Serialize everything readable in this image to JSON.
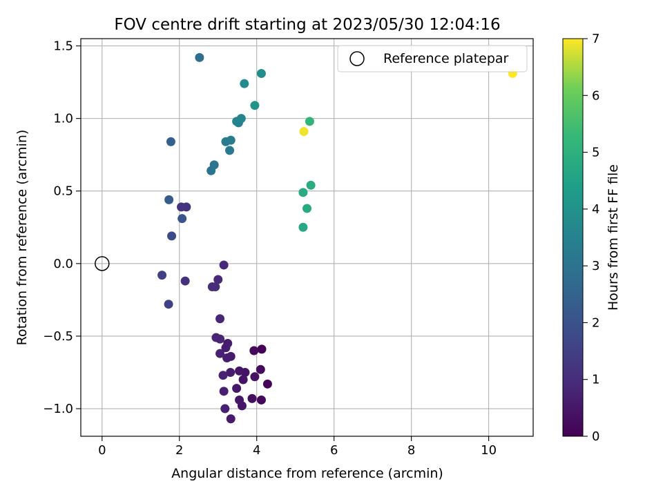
{
  "chart_data": {
    "type": "scatter",
    "title": "FOV centre drift starting at 2023/05/30 12:04:16",
    "xlabel": "Angular distance from reference (arcmin)",
    "ylabel": "Rotation from reference (arcmin)",
    "xlim": [
      -0.55,
      11.15
    ],
    "ylim": [
      -1.19,
      1.55
    ],
    "xticks": [
      0,
      2,
      4,
      6,
      8,
      10
    ],
    "xtick_labels": [
      "0",
      "2",
      "4",
      "6",
      "8",
      "10"
    ],
    "yticks": [
      -1.0,
      -0.5,
      0.0,
      0.5,
      1.0,
      1.5
    ],
    "ytick_labels": [
      "−1.0",
      "−0.5",
      "0.0",
      "0.5",
      "1.0",
      "1.5"
    ],
    "grid": true,
    "legend": {
      "position": "upper right",
      "entries": [
        "Reference platepar"
      ]
    },
    "reference_point": {
      "x": 0.0,
      "y": 0.0,
      "label": "Reference platepar"
    },
    "colorbar": {
      "label": "Hours from first FF file",
      "range": [
        0,
        7
      ],
      "ticks": [
        0,
        1,
        2,
        3,
        4,
        5,
        6,
        7
      ],
      "tick_labels": [
        "0",
        "1",
        "2",
        "3",
        "4",
        "5",
        "6",
        "7"
      ],
      "colormap": "viridis"
    },
    "points": [
      {
        "x": 4.13,
        "y": -0.59,
        "h": 0.05
      },
      {
        "x": 4.28,
        "y": -0.83,
        "h": 0.1
      },
      {
        "x": 4.12,
        "y": -0.94,
        "h": 0.15
      },
      {
        "x": 3.93,
        "y": -0.6,
        "h": 0.2
      },
      {
        "x": 4.1,
        "y": -0.73,
        "h": 0.25
      },
      {
        "x": 3.88,
        "y": -0.93,
        "h": 0.3
      },
      {
        "x": 3.95,
        "y": -0.78,
        "h": 0.35
      },
      {
        "x": 3.7,
        "y": -0.75,
        "h": 0.4
      },
      {
        "x": 3.65,
        "y": -0.8,
        "h": 0.4
      },
      {
        "x": 3.62,
        "y": -0.98,
        "h": 0.45
      },
      {
        "x": 3.55,
        "y": -0.74,
        "h": 0.45
      },
      {
        "x": 3.55,
        "y": -0.94,
        "h": 0.5
      },
      {
        "x": 3.48,
        "y": -0.86,
        "h": 0.5
      },
      {
        "x": 3.33,
        "y": -1.07,
        "h": 0.55
      },
      {
        "x": 3.33,
        "y": -0.64,
        "h": 0.55
      },
      {
        "x": 3.32,
        "y": -0.75,
        "h": 0.6
      },
      {
        "x": 3.25,
        "y": -0.55,
        "h": 0.6
      },
      {
        "x": 3.23,
        "y": -0.65,
        "h": 0.65
      },
      {
        "x": 3.2,
        "y": -0.58,
        "h": 0.65
      },
      {
        "x": 3.18,
        "y": -1.0,
        "h": 0.7
      },
      {
        "x": 3.15,
        "y": -0.88,
        "h": 0.7
      },
      {
        "x": 3.13,
        "y": -0.77,
        "h": 0.75
      },
      {
        "x": 3.05,
        "y": -0.62,
        "h": 0.75
      },
      {
        "x": 3.05,
        "y": -0.52,
        "h": 0.8
      },
      {
        "x": 2.95,
        "y": -0.51,
        "h": 0.8
      },
      {
        "x": 3.05,
        "y": -0.38,
        "h": 0.85
      },
      {
        "x": 3.15,
        "y": -0.01,
        "h": 0.9
      },
      {
        "x": 3.0,
        "y": -0.11,
        "h": 0.95
      },
      {
        "x": 2.93,
        "y": -0.16,
        "h": 1.0
      },
      {
        "x": 2.85,
        "y": -0.16,
        "h": 1.0
      },
      {
        "x": 2.15,
        "y": -0.12,
        "h": 1.1
      },
      {
        "x": 2.18,
        "y": 0.39,
        "h": 1.15
      },
      {
        "x": 2.05,
        "y": 0.39,
        "h": 1.2
      },
      {
        "x": 1.55,
        "y": -0.08,
        "h": 1.5
      },
      {
        "x": 1.72,
        "y": -0.28,
        "h": 1.55
      },
      {
        "x": 1.8,
        "y": 0.19,
        "h": 1.8
      },
      {
        "x": 2.07,
        "y": 0.31,
        "h": 2.1
      },
      {
        "x": 1.73,
        "y": 0.44,
        "h": 2.3
      },
      {
        "x": 1.78,
        "y": 0.84,
        "h": 2.4
      },
      {
        "x": 2.52,
        "y": 1.42,
        "h": 2.8
      },
      {
        "x": 2.82,
        "y": 0.64,
        "h": 3.0
      },
      {
        "x": 2.9,
        "y": 0.68,
        "h": 3.05
      },
      {
        "x": 3.3,
        "y": 0.78,
        "h": 3.2
      },
      {
        "x": 3.2,
        "y": 0.84,
        "h": 3.25
      },
      {
        "x": 3.33,
        "y": 0.85,
        "h": 3.3
      },
      {
        "x": 3.48,
        "y": 0.98,
        "h": 3.45
      },
      {
        "x": 3.53,
        "y": 0.97,
        "h": 3.5
      },
      {
        "x": 3.6,
        "y": 1.0,
        "h": 3.6
      },
      {
        "x": 3.68,
        "y": 1.24,
        "h": 3.75
      },
      {
        "x": 4.12,
        "y": 1.31,
        "h": 3.85
      },
      {
        "x": 3.95,
        "y": 1.09,
        "h": 4.0
      },
      {
        "x": 5.2,
        "y": 0.25,
        "h": 4.7
      },
      {
        "x": 5.3,
        "y": 0.38,
        "h": 4.75
      },
      {
        "x": 5.2,
        "y": 0.49,
        "h": 4.8
      },
      {
        "x": 5.4,
        "y": 0.54,
        "h": 4.85
      },
      {
        "x": 5.37,
        "y": 0.98,
        "h": 5.1
      },
      {
        "x": 5.22,
        "y": 0.91,
        "h": 6.9
      },
      {
        "x": 10.62,
        "y": 1.31,
        "h": 7.0
      }
    ]
  }
}
